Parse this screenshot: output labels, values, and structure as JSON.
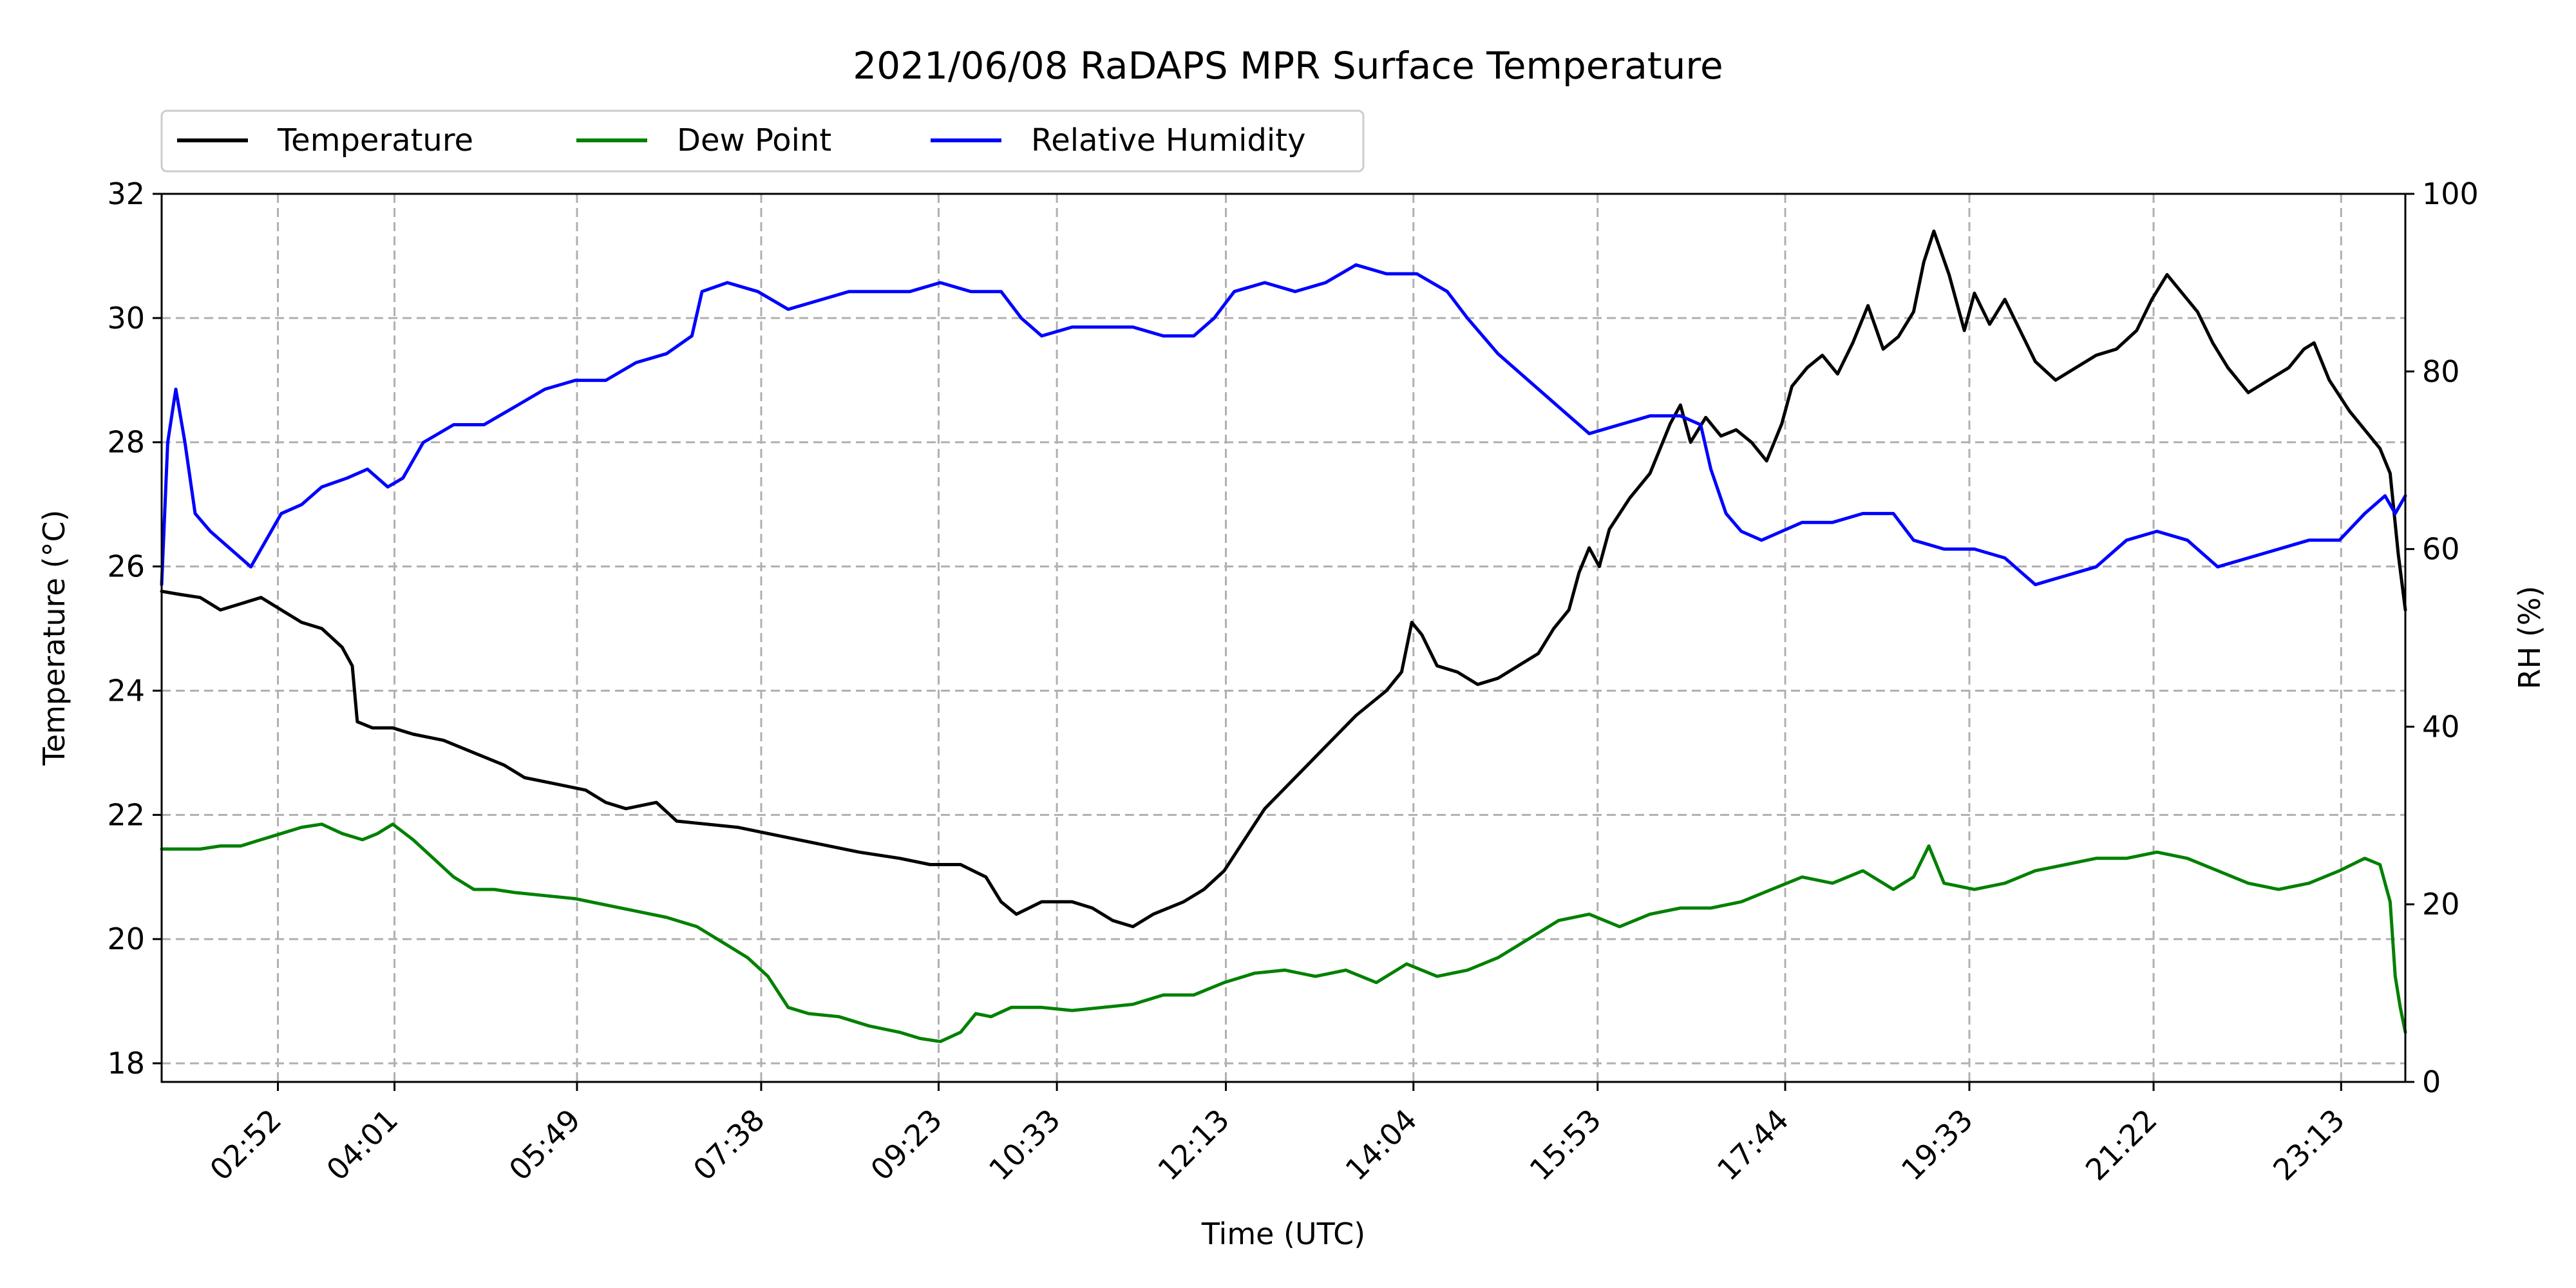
{
  "chart_data": {
    "type": "line",
    "title": "2021/06/08 RaDAPS MPR Surface Temperature",
    "xlabel": "Time (UTC)",
    "ylabel_left": "Temperature ($^\\circ$C)",
    "ylabel_left_display": "Temperature (°C)",
    "ylabel_right": "RH (%)",
    "x_unit": "hours UTC",
    "xlim": [
      1.72,
      23.85
    ],
    "ylim_left": [
      17.7,
      32.0
    ],
    "ylim_right": [
      0,
      100
    ],
    "x_ticks": [
      {
        "label": "02:52",
        "value": 2.8667
      },
      {
        "label": "04:01",
        "value": 4.0167
      },
      {
        "label": "05:49",
        "value": 5.8167
      },
      {
        "label": "07:38",
        "value": 7.6333
      },
      {
        "label": "09:23",
        "value": 9.3833
      },
      {
        "label": "10:33",
        "value": 10.55
      },
      {
        "label": "12:13",
        "value": 12.2167
      },
      {
        "label": "14:04",
        "value": 14.0667
      },
      {
        "label": "15:53",
        "value": 15.8833
      },
      {
        "label": "17:44",
        "value": 17.7333
      },
      {
        "label": "19:33",
        "value": 19.55
      },
      {
        "label": "21:22",
        "value": 21.3667
      },
      {
        "label": "23:13",
        "value": 23.2167
      }
    ],
    "y_ticks_left": [
      18,
      20,
      22,
      24,
      26,
      28,
      30,
      32
    ],
    "y_ticks_right": [
      0,
      20,
      40,
      60,
      80,
      100
    ],
    "grid": true,
    "legend_position": "top-left, above plot",
    "series": [
      {
        "name": "Temperature",
        "axis": "left",
        "color": "#000000",
        "points": [
          [
            1.72,
            25.6
          ],
          [
            1.9,
            25.55
          ],
          [
            2.1,
            25.5
          ],
          [
            2.3,
            25.3
          ],
          [
            2.5,
            25.4
          ],
          [
            2.7,
            25.5
          ],
          [
            2.9,
            25.3
          ],
          [
            3.1,
            25.1
          ],
          [
            3.3,
            25.0
          ],
          [
            3.5,
            24.7
          ],
          [
            3.6,
            24.4
          ],
          [
            3.65,
            23.5
          ],
          [
            3.8,
            23.4
          ],
          [
            4.0,
            23.4
          ],
          [
            4.2,
            23.3
          ],
          [
            4.5,
            23.2
          ],
          [
            4.8,
            23.0
          ],
          [
            5.1,
            22.8
          ],
          [
            5.3,
            22.6
          ],
          [
            5.6,
            22.5
          ],
          [
            5.9,
            22.4
          ],
          [
            6.1,
            22.2
          ],
          [
            6.3,
            22.1
          ],
          [
            6.6,
            22.2
          ],
          [
            6.8,
            21.9
          ],
          [
            7.1,
            21.85
          ],
          [
            7.4,
            21.8
          ],
          [
            7.7,
            21.7
          ],
          [
            8.0,
            21.6
          ],
          [
            8.3,
            21.5
          ],
          [
            8.6,
            21.4
          ],
          [
            9.0,
            21.3
          ],
          [
            9.3,
            21.2
          ],
          [
            9.6,
            21.2
          ],
          [
            9.85,
            21.0
          ],
          [
            10.0,
            20.6
          ],
          [
            10.15,
            20.4
          ],
          [
            10.4,
            20.6
          ],
          [
            10.7,
            20.6
          ],
          [
            10.9,
            20.5
          ],
          [
            11.1,
            20.3
          ],
          [
            11.3,
            20.2
          ],
          [
            11.5,
            20.4
          ],
          [
            11.8,
            20.6
          ],
          [
            12.0,
            20.8
          ],
          [
            12.2,
            21.1
          ],
          [
            12.4,
            21.6
          ],
          [
            12.6,
            22.1
          ],
          [
            12.9,
            22.6
          ],
          [
            13.2,
            23.1
          ],
          [
            13.5,
            23.6
          ],
          [
            13.8,
            24.0
          ],
          [
            13.95,
            24.3
          ],
          [
            14.05,
            25.1
          ],
          [
            14.15,
            24.9
          ],
          [
            14.3,
            24.4
          ],
          [
            14.5,
            24.3
          ],
          [
            14.7,
            24.1
          ],
          [
            14.9,
            24.2
          ],
          [
            15.1,
            24.4
          ],
          [
            15.3,
            24.6
          ],
          [
            15.45,
            25.0
          ],
          [
            15.6,
            25.3
          ],
          [
            15.7,
            25.9
          ],
          [
            15.8,
            26.3
          ],
          [
            15.9,
            26.0
          ],
          [
            16.0,
            26.6
          ],
          [
            16.2,
            27.1
          ],
          [
            16.4,
            27.5
          ],
          [
            16.5,
            27.9
          ],
          [
            16.6,
            28.3
          ],
          [
            16.7,
            28.6
          ],
          [
            16.8,
            28.0
          ],
          [
            16.95,
            28.4
          ],
          [
            17.1,
            28.1
          ],
          [
            17.25,
            28.2
          ],
          [
            17.4,
            28.0
          ],
          [
            17.55,
            27.7
          ],
          [
            17.7,
            28.3
          ],
          [
            17.8,
            28.9
          ],
          [
            17.95,
            29.2
          ],
          [
            18.1,
            29.4
          ],
          [
            18.25,
            29.1
          ],
          [
            18.4,
            29.6
          ],
          [
            18.55,
            30.2
          ],
          [
            18.7,
            29.5
          ],
          [
            18.85,
            29.7
          ],
          [
            19.0,
            30.1
          ],
          [
            19.1,
            30.9
          ],
          [
            19.2,
            31.4
          ],
          [
            19.35,
            30.7
          ],
          [
            19.5,
            29.8
          ],
          [
            19.6,
            30.4
          ],
          [
            19.75,
            29.9
          ],
          [
            19.9,
            30.3
          ],
          [
            20.05,
            29.8
          ],
          [
            20.2,
            29.3
          ],
          [
            20.4,
            29.0
          ],
          [
            20.6,
            29.2
          ],
          [
            20.8,
            29.4
          ],
          [
            21.0,
            29.5
          ],
          [
            21.2,
            29.8
          ],
          [
            21.35,
            30.3
          ],
          [
            21.5,
            30.7
          ],
          [
            21.65,
            30.4
          ],
          [
            21.8,
            30.1
          ],
          [
            21.95,
            29.6
          ],
          [
            22.1,
            29.2
          ],
          [
            22.3,
            28.8
          ],
          [
            22.5,
            29.0
          ],
          [
            22.7,
            29.2
          ],
          [
            22.85,
            29.5
          ],
          [
            22.95,
            29.6
          ],
          [
            23.1,
            29.0
          ],
          [
            23.3,
            28.5
          ],
          [
            23.45,
            28.2
          ],
          [
            23.6,
            27.9
          ],
          [
            23.7,
            27.5
          ],
          [
            23.78,
            26.2
          ],
          [
            23.85,
            25.3
          ]
        ]
      },
      {
        "name": "Dew Point",
        "axis": "left",
        "color": "#008000",
        "points": [
          [
            1.72,
            21.45
          ],
          [
            1.9,
            21.45
          ],
          [
            2.1,
            21.45
          ],
          [
            2.3,
            21.5
          ],
          [
            2.5,
            21.5
          ],
          [
            2.7,
            21.6
          ],
          [
            2.9,
            21.7
          ],
          [
            3.1,
            21.8
          ],
          [
            3.3,
            21.85
          ],
          [
            3.5,
            21.7
          ],
          [
            3.7,
            21.6
          ],
          [
            3.85,
            21.7
          ],
          [
            4.0,
            21.85
          ],
          [
            4.2,
            21.6
          ],
          [
            4.4,
            21.3
          ],
          [
            4.6,
            21.0
          ],
          [
            4.8,
            20.8
          ],
          [
            5.0,
            20.8
          ],
          [
            5.2,
            20.75
          ],
          [
            5.5,
            20.7
          ],
          [
            5.8,
            20.65
          ],
          [
            6.1,
            20.55
          ],
          [
            6.4,
            20.45
          ],
          [
            6.7,
            20.35
          ],
          [
            7.0,
            20.2
          ],
          [
            7.3,
            19.9
          ],
          [
            7.5,
            19.7
          ],
          [
            7.7,
            19.4
          ],
          [
            7.9,
            18.9
          ],
          [
            8.1,
            18.8
          ],
          [
            8.4,
            18.75
          ],
          [
            8.7,
            18.6
          ],
          [
            9.0,
            18.5
          ],
          [
            9.2,
            18.4
          ],
          [
            9.4,
            18.35
          ],
          [
            9.6,
            18.5
          ],
          [
            9.75,
            18.8
          ],
          [
            9.9,
            18.75
          ],
          [
            10.1,
            18.9
          ],
          [
            10.4,
            18.9
          ],
          [
            10.7,
            18.85
          ],
          [
            11.0,
            18.9
          ],
          [
            11.3,
            18.95
          ],
          [
            11.6,
            19.1
          ],
          [
            11.9,
            19.1
          ],
          [
            12.2,
            19.3
          ],
          [
            12.5,
            19.45
          ],
          [
            12.8,
            19.5
          ],
          [
            13.1,
            19.4
          ],
          [
            13.4,
            19.5
          ],
          [
            13.7,
            19.3
          ],
          [
            14.0,
            19.6
          ],
          [
            14.3,
            19.4
          ],
          [
            14.6,
            19.5
          ],
          [
            14.9,
            19.7
          ],
          [
            15.2,
            20.0
          ],
          [
            15.5,
            20.3
          ],
          [
            15.8,
            20.4
          ],
          [
            16.1,
            20.2
          ],
          [
            16.4,
            20.4
          ],
          [
            16.7,
            20.5
          ],
          [
            17.0,
            20.5
          ],
          [
            17.3,
            20.6
          ],
          [
            17.6,
            20.8
          ],
          [
            17.9,
            21.0
          ],
          [
            18.2,
            20.9
          ],
          [
            18.5,
            21.1
          ],
          [
            18.8,
            20.8
          ],
          [
            19.0,
            21.0
          ],
          [
            19.15,
            21.5
          ],
          [
            19.3,
            20.9
          ],
          [
            19.6,
            20.8
          ],
          [
            19.9,
            20.9
          ],
          [
            20.2,
            21.1
          ],
          [
            20.5,
            21.2
          ],
          [
            20.8,
            21.3
          ],
          [
            21.1,
            21.3
          ],
          [
            21.4,
            21.4
          ],
          [
            21.7,
            21.3
          ],
          [
            22.0,
            21.1
          ],
          [
            22.3,
            20.9
          ],
          [
            22.6,
            20.8
          ],
          [
            22.9,
            20.9
          ],
          [
            23.2,
            21.1
          ],
          [
            23.45,
            21.3
          ],
          [
            23.6,
            21.2
          ],
          [
            23.7,
            20.6
          ],
          [
            23.75,
            19.4
          ],
          [
            23.8,
            18.9
          ],
          [
            23.85,
            18.5
          ]
        ]
      },
      {
        "name": "Relative Humidity",
        "axis": "right",
        "color": "#0000ff",
        "points": [
          [
            1.72,
            56
          ],
          [
            1.78,
            72
          ],
          [
            1.86,
            78
          ],
          [
            1.95,
            72
          ],
          [
            2.05,
            64
          ],
          [
            2.2,
            62
          ],
          [
            2.4,
            60
          ],
          [
            2.6,
            58
          ],
          [
            2.75,
            61
          ],
          [
            2.9,
            64
          ],
          [
            3.1,
            65
          ],
          [
            3.3,
            67
          ],
          [
            3.55,
            68
          ],
          [
            3.75,
            69
          ],
          [
            3.95,
            67
          ],
          [
            4.1,
            68
          ],
          [
            4.3,
            72
          ],
          [
            4.6,
            74
          ],
          [
            4.9,
            74
          ],
          [
            5.2,
            76
          ],
          [
            5.5,
            78
          ],
          [
            5.8,
            79
          ],
          [
            6.1,
            79
          ],
          [
            6.4,
            81
          ],
          [
            6.7,
            82
          ],
          [
            6.95,
            84
          ],
          [
            7.05,
            89
          ],
          [
            7.3,
            90
          ],
          [
            7.6,
            89
          ],
          [
            7.9,
            87
          ],
          [
            8.2,
            88
          ],
          [
            8.5,
            89
          ],
          [
            8.8,
            89
          ],
          [
            9.1,
            89
          ],
          [
            9.4,
            90
          ],
          [
            9.7,
            89
          ],
          [
            10.0,
            89
          ],
          [
            10.2,
            86
          ],
          [
            10.4,
            84
          ],
          [
            10.7,
            85
          ],
          [
            11.0,
            85
          ],
          [
            11.3,
            85
          ],
          [
            11.6,
            84
          ],
          [
            11.9,
            84
          ],
          [
            12.1,
            86
          ],
          [
            12.3,
            89
          ],
          [
            12.6,
            90
          ],
          [
            12.9,
            89
          ],
          [
            13.2,
            90
          ],
          [
            13.5,
            92
          ],
          [
            13.8,
            91
          ],
          [
            14.1,
            91
          ],
          [
            14.4,
            89
          ],
          [
            14.6,
            86
          ],
          [
            14.9,
            82
          ],
          [
            15.2,
            79
          ],
          [
            15.5,
            76
          ],
          [
            15.8,
            73
          ],
          [
            16.1,
            74
          ],
          [
            16.4,
            75
          ],
          [
            16.7,
            75
          ],
          [
            16.9,
            74
          ],
          [
            17.0,
            69
          ],
          [
            17.15,
            64
          ],
          [
            17.3,
            62
          ],
          [
            17.5,
            61
          ],
          [
            17.7,
            62
          ],
          [
            17.9,
            63
          ],
          [
            18.2,
            63
          ],
          [
            18.5,
            64
          ],
          [
            18.8,
            64
          ],
          [
            19.0,
            61
          ],
          [
            19.3,
            60
          ],
          [
            19.6,
            60
          ],
          [
            19.9,
            59
          ],
          [
            20.2,
            56
          ],
          [
            20.5,
            57
          ],
          [
            20.8,
            58
          ],
          [
            21.1,
            61
          ],
          [
            21.4,
            62
          ],
          [
            21.7,
            61
          ],
          [
            22.0,
            58
          ],
          [
            22.3,
            59
          ],
          [
            22.6,
            60
          ],
          [
            22.9,
            61
          ],
          [
            23.2,
            61
          ],
          [
            23.45,
            64
          ],
          [
            23.65,
            66
          ],
          [
            23.75,
            64
          ],
          [
            23.85,
            66
          ]
        ]
      }
    ]
  }
}
